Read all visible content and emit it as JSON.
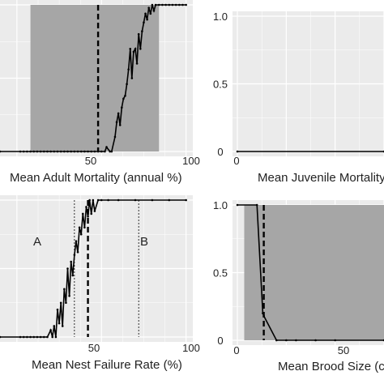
{
  "chart_data": [
    {
      "type": "line",
      "position": "top-left",
      "xlabel": "Mean Adult Mortality (annual %)",
      "x_ticks": [
        "50",
        "100"
      ],
      "y_ticks": [],
      "xlim": [
        -10,
        104
      ],
      "ylim": [
        0,
        1
      ],
      "shaded_range": [
        8,
        84
      ],
      "dashed_line_x": 48,
      "series": [
        {
          "x": [
            -10,
            2,
            4,
            6,
            8,
            10,
            12,
            14,
            16,
            18,
            20,
            22,
            24,
            26,
            28,
            30,
            32,
            34,
            36,
            38,
            40,
            42,
            44,
            46,
            48,
            50,
            52,
            53,
            55,
            56,
            58,
            59,
            60,
            61,
            62,
            63,
            64,
            65,
            66,
            67,
            68,
            69,
            70,
            71,
            72,
            73,
            74,
            75,
            76,
            77,
            78,
            79,
            80,
            81,
            82,
            84,
            86,
            88,
            90,
            92,
            94,
            96,
            98,
            100
          ],
          "y": [
            0,
            0,
            0,
            0,
            0,
            0,
            0,
            0,
            0,
            0,
            0,
            0,
            0,
            0,
            0,
            0,
            0,
            0,
            0,
            0,
            0,
            0,
            0,
            0,
            0,
            0,
            0,
            0.03,
            0,
            0,
            0.1,
            0.2,
            0.26,
            0.18,
            0.3,
            0.36,
            0.38,
            0.46,
            0.56,
            0.7,
            0.5,
            0.68,
            0.7,
            0.6,
            0.8,
            0.7,
            0.82,
            0.88,
            0.94,
            0.9,
            0.98,
            0.94,
            1,
            0.96,
            1,
            1,
            1,
            1,
            1,
            1,
            1,
            1,
            1,
            1
          ]
        }
      ]
    },
    {
      "type": "line",
      "position": "top-right",
      "xlabel": "Mean Juvenile Mortality",
      "x_ticks": [
        "0"
      ],
      "y_ticks": [
        "1.0",
        "0.5",
        "0"
      ],
      "xlim": [
        -5,
        150
      ],
      "ylim": [
        0,
        1
      ],
      "series": [
        {
          "x": [
            0,
            150
          ],
          "y": [
            0,
            0
          ]
        }
      ]
    },
    {
      "type": "line",
      "position": "bottom-left",
      "xlabel": "Mean Nest Failure Rate (%)",
      "x_ticks": [
        "50",
        "100"
      ],
      "y_ticks": [],
      "xlim": [
        -10,
        104
      ],
      "ylim": [
        0,
        1
      ],
      "dashed_line_x": 42,
      "dotted_lines_x": [
        34,
        72
      ],
      "annotations": [
        "A",
        "B"
      ],
      "series": [
        {
          "x": [
            -10,
            2,
            4,
            6,
            8,
            10,
            12,
            14,
            16,
            18,
            20,
            21,
            22,
            23,
            24,
            25,
            26,
            27,
            28,
            29,
            30,
            31,
            32,
            33,
            34,
            35,
            36,
            37,
            38,
            39,
            40,
            41,
            42,
            43,
            44,
            45,
            46,
            48,
            50,
            54,
            60,
            70,
            80,
            90,
            100
          ],
          "y": [
            0,
            0,
            0,
            0,
            0,
            0,
            0,
            0,
            0,
            0,
            0.05,
            0,
            0.08,
            0,
            0.2,
            0.1,
            0.25,
            0.08,
            0.35,
            0.25,
            0.5,
            0.3,
            0.55,
            0.45,
            0.6,
            0.7,
            0.62,
            0.8,
            0.75,
            0.9,
            0.8,
            0.95,
            0.88,
            1,
            0.9,
            1,
            0.92,
            1,
            1,
            1,
            1,
            1,
            1,
            1,
            1
          ]
        }
      ]
    },
    {
      "type": "line",
      "position": "bottom-right",
      "xlabel": "Mean Brood Size (chi",
      "x_ticks": [
        "0",
        "50"
      ],
      "y_ticks": [
        "1.0",
        "0.5",
        "0"
      ],
      "xlim": [
        -5,
        150
      ],
      "ylim": [
        0,
        1
      ],
      "shaded_range": [
        7,
        150
      ],
      "dashed_line_x": 27,
      "series": [
        {
          "x": [
            0,
            20,
            26,
            27,
            40,
            50,
            60,
            80,
            100,
            150
          ],
          "y": [
            1,
            1,
            0.2,
            0.18,
            0,
            0,
            0,
            0,
            0,
            0
          ]
        }
      ]
    }
  ]
}
